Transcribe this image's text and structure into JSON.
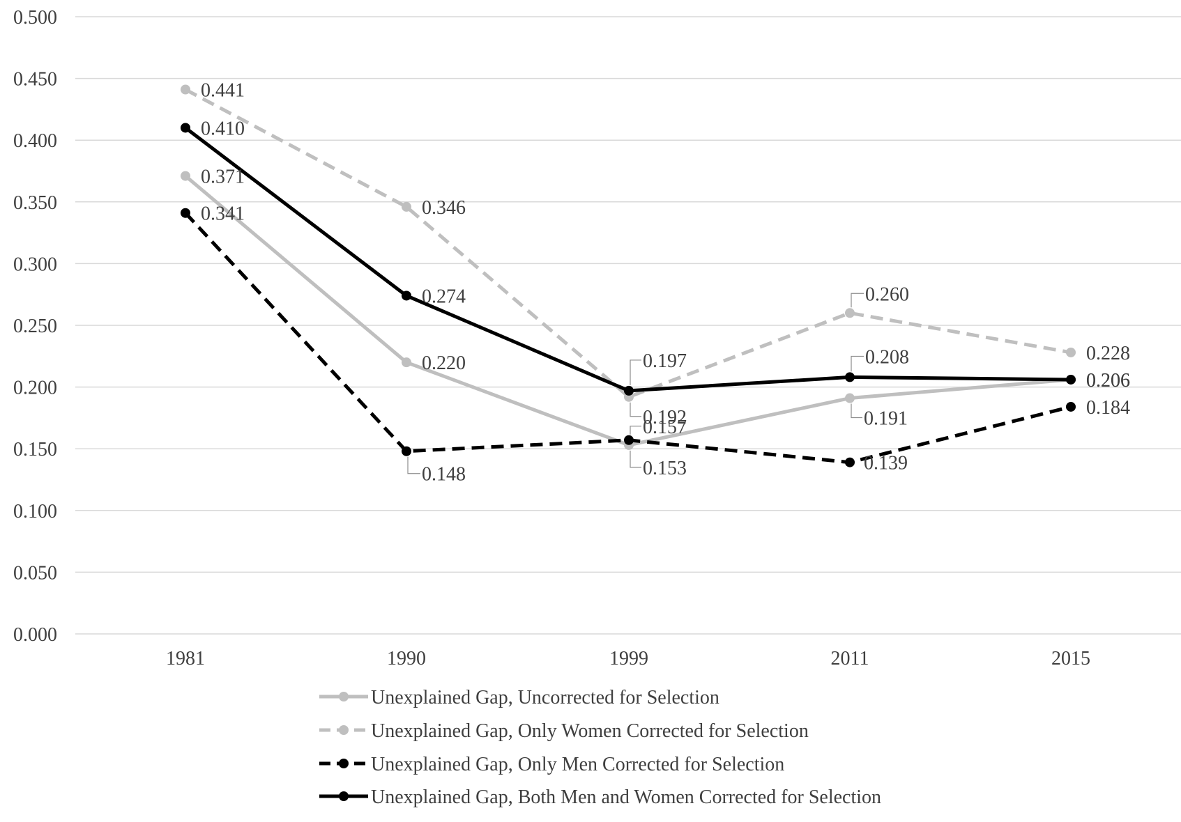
{
  "chart_data": {
    "type": "line",
    "categories": [
      "1981",
      "1990",
      "1999",
      "2011",
      "2015"
    ],
    "ylim": [
      0,
      0.5
    ],
    "yticks": [
      "0.000",
      "0.050",
      "0.100",
      "0.150",
      "0.200",
      "0.250",
      "0.300",
      "0.350",
      "0.400",
      "0.450",
      "0.500"
    ],
    "grid": true,
    "legend_position": "bottom",
    "series": [
      {
        "name": "Unexplained Gap, Uncorrected for Selection",
        "values": [
          0.371,
          0.22,
          0.153,
          0.191,
          0.206
        ],
        "labels": [
          "0.371",
          "0.220",
          "0.153",
          "0.191",
          "0.206"
        ],
        "color": "#bfbfbf",
        "dash": false
      },
      {
        "name": "Unexplained Gap, Only Women Corrected for Selection",
        "values": [
          0.441,
          0.346,
          0.192,
          0.26,
          0.228
        ],
        "labels": [
          "0.441",
          "0.346",
          "0.192",
          "0.260",
          "0.228"
        ],
        "color": "#bfbfbf",
        "dash": true
      },
      {
        "name": "Unexplained Gap, Only Men Corrected for Selection",
        "values": [
          0.341,
          0.148,
          0.157,
          0.139,
          0.184
        ],
        "labels": [
          "0.341",
          "0.148",
          "0.157",
          "0.139",
          "0.184"
        ],
        "color": "#000000",
        "dash": true
      },
      {
        "name": "Unexplained Gap, Both Men and Women Corrected for Selection",
        "values": [
          0.41,
          0.274,
          0.197,
          0.208,
          0.206
        ],
        "labels": [
          "0.410",
          "0.274",
          "0.197",
          "0.208",
          "0.206"
        ],
        "color": "#000000",
        "dash": false
      }
    ]
  }
}
